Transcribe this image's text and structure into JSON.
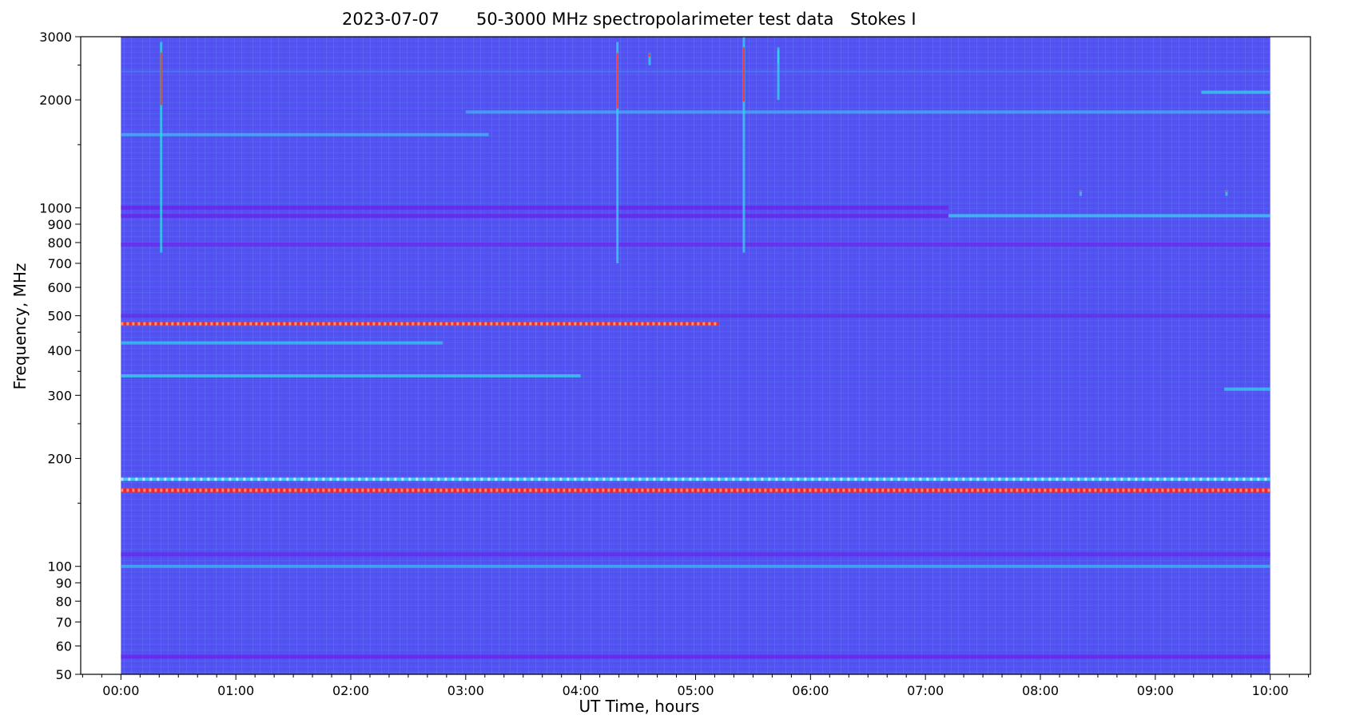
{
  "chart_data": {
    "type": "heatmap",
    "title_parts": [
      "2023-07-07",
      "50-3000 MHz spectropolarimeter test data",
      "Stokes I"
    ],
    "xlabel": "UT Time, hours",
    "ylabel": "Frequency, MHz",
    "x_ticks": [
      "00:00",
      "01:00",
      "02:00",
      "03:00",
      "04:00",
      "05:00",
      "06:00",
      "07:00",
      "08:00",
      "09:00",
      "10:00"
    ],
    "xlim_hours": [
      -0.35,
      10.35
    ],
    "data_extent_hours": [
      0.0,
      10.0
    ],
    "yscale": "log",
    "ylim": [
      50,
      3000
    ],
    "y_ticks": [
      50,
      60,
      70,
      80,
      90,
      100,
      200,
      300,
      400,
      500,
      600,
      700,
      800,
      900,
      1000,
      2000,
      3000
    ],
    "y_minor_ticks": [
      150,
      250,
      350,
      450,
      1500,
      2500
    ],
    "colormap": [
      "#6a1fe8",
      "#5050f5",
      "#4a8cf0",
      "#2ed8e8",
      "#c8f0c0",
      "#ff2a1a"
    ],
    "grid": false,
    "background_color": "#5353f2",
    "bands": [
      {
        "freq": 163,
        "t_start": 0.0,
        "t_end": 10.0,
        "level": "high",
        "color": "#ff2020"
      },
      {
        "freq": 175,
        "t_start": 0.0,
        "t_end": 10.0,
        "level": "medium-high",
        "color": "#30e0ec"
      },
      {
        "freq": 475,
        "t_start": 0.0,
        "t_end": 5.2,
        "level": "high",
        "color": "#ff2a20"
      },
      {
        "freq": 340,
        "t_start": 0.0,
        "t_end": 4.0,
        "level": "medium",
        "color": "#30d8ec"
      },
      {
        "freq": 420,
        "t_start": 0.0,
        "t_end": 2.8,
        "level": "medium",
        "color": "#34c8ee"
      },
      {
        "freq": 100,
        "t_start": 0.0,
        "t_end": 10.0,
        "level": "medium",
        "color": "#3cb8f0"
      },
      {
        "freq": 1600,
        "t_start": 0.0,
        "t_end": 3.2,
        "level": "medium",
        "color": "#40b8f2"
      },
      {
        "freq": 1850,
        "t_start": 3.0,
        "t_end": 10.0,
        "level": "medium",
        "color": "#40b0f2"
      },
      {
        "freq": 950,
        "t_start": 7.2,
        "t_end": 10.0,
        "level": "medium",
        "color": "#38d0ee"
      },
      {
        "freq": 2100,
        "t_start": 9.4,
        "t_end": 10.0,
        "level": "medium",
        "color": "#38d0ee"
      },
      {
        "freq": 312,
        "t_start": 9.6,
        "t_end": 10.0,
        "level": "medium",
        "color": "#38d0ee"
      },
      {
        "freq": 2400,
        "t_start": 0.0,
        "t_end": 10.0,
        "level": "low",
        "color": "#4a8cf0"
      },
      {
        "freq": 1000,
        "t_start": 0.0,
        "t_end": 7.2,
        "level": "dip",
        "color": "#6a1fe8"
      },
      {
        "freq": 950,
        "t_start": 0.0,
        "t_end": 7.2,
        "level": "dip",
        "color": "#6a1fe8"
      },
      {
        "freq": 500,
        "t_start": 0.0,
        "t_end": 10.0,
        "level": "dip",
        "color": "#6a28e8"
      },
      {
        "freq": 56,
        "t_start": 0.0,
        "t_end": 10.0,
        "level": "dip",
        "color": "#6a1fe8"
      },
      {
        "freq": 108,
        "t_start": 0.0,
        "t_end": 10.0,
        "level": "dip",
        "color": "#6426ea"
      },
      {
        "freq": 790,
        "t_start": 0.0,
        "t_end": 10.0,
        "level": "dip",
        "color": "#6a28e8"
      }
    ],
    "bursts": [
      {
        "t": 0.35,
        "f_low": 750,
        "f_high": 2900,
        "color": "#ff3020"
      },
      {
        "t": 4.32,
        "f_low": 700,
        "f_high": 2900,
        "color": "#ff3020"
      },
      {
        "t": 5.42,
        "f_low": 750,
        "f_high": 3000,
        "color": "#ff3020"
      },
      {
        "t": 4.6,
        "f_low": 2500,
        "f_high": 2700,
        "color": "#ff3020"
      },
      {
        "t": 5.72,
        "f_low": 2000,
        "f_high": 2800,
        "color": "#30d8ec"
      },
      {
        "t": 9.62,
        "f_low": 1080,
        "f_high": 1120,
        "color": "#ff3020"
      },
      {
        "t": 8.35,
        "f_low": 1080,
        "f_high": 1120,
        "color": "#ff3020"
      }
    ]
  }
}
